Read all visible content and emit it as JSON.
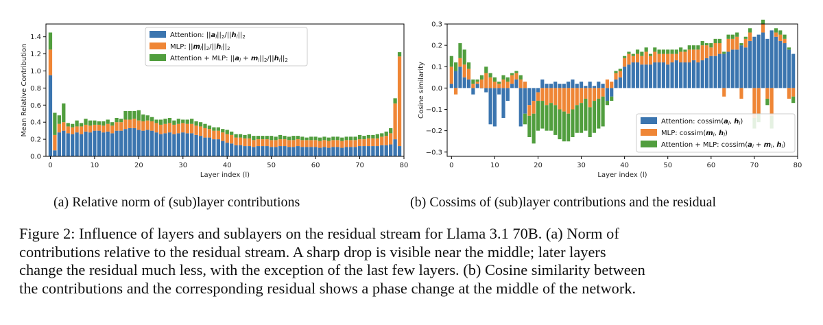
{
  "chart_data": [
    {
      "type": "bar",
      "stacked": true,
      "xlabel": "Layer index (l)",
      "ylabel": "Mean Relative Contribution",
      "xlim": [
        -1,
        80
      ],
      "ylim": [
        0,
        1.55
      ],
      "xticks": [
        "0",
        "10",
        "20",
        "30",
        "40",
        "50",
        "60",
        "70",
        "80"
      ],
      "yticks": [
        "0.0",
        "0.2",
        "0.4",
        "0.6",
        "0.8",
        "1.0",
        "1.2",
        "1.4"
      ],
      "legend_position": "top-center",
      "x": [
        0,
        1,
        2,
        3,
        4,
        5,
        6,
        7,
        8,
        9,
        10,
        11,
        12,
        13,
        14,
        15,
        16,
        17,
        18,
        19,
        20,
        21,
        22,
        23,
        24,
        25,
        26,
        27,
        28,
        29,
        30,
        31,
        32,
        33,
        34,
        35,
        36,
        37,
        38,
        39,
        40,
        41,
        42,
        43,
        44,
        45,
        46,
        47,
        48,
        49,
        50,
        51,
        52,
        53,
        54,
        55,
        56,
        57,
        58,
        59,
        60,
        61,
        62,
        63,
        64,
        65,
        66,
        67,
        68,
        69,
        70,
        71,
        72,
        73,
        74,
        75,
        76,
        77,
        78,
        79
      ],
      "series": [
        {
          "name": "Attention: ||a_l||₂/||h_l||₂",
          "color": "#3b75af",
          "values": [
            0.95,
            0.07,
            0.28,
            0.3,
            0.27,
            0.26,
            0.28,
            0.26,
            0.29,
            0.28,
            0.3,
            0.3,
            0.28,
            0.29,
            0.27,
            0.3,
            0.3,
            0.32,
            0.33,
            0.33,
            0.31,
            0.3,
            0.31,
            0.3,
            0.28,
            0.26,
            0.27,
            0.28,
            0.26,
            0.27,
            0.28,
            0.27,
            0.27,
            0.25,
            0.24,
            0.22,
            0.22,
            0.2,
            0.2,
            0.18,
            0.16,
            0.15,
            0.13,
            0.13,
            0.12,
            0.12,
            0.11,
            0.12,
            0.12,
            0.12,
            0.11,
            0.11,
            0.12,
            0.12,
            0.11,
            0.11,
            0.12,
            0.11,
            0.11,
            0.11,
            0.11,
            0.1,
            0.11,
            0.1,
            0.11,
            0.11,
            0.1,
            0.11,
            0.11,
            0.11,
            0.12,
            0.12,
            0.12,
            0.12,
            0.12,
            0.13,
            0.13,
            0.14,
            0.2,
            0.12
          ]
        },
        {
          "name": "MLP: ||m_l||₂/||h_l||₂",
          "color": "#ef8636",
          "values": [
            0.3,
            0.18,
            0.1,
            0.1,
            0.08,
            0.08,
            0.07,
            0.09,
            0.08,
            0.08,
            0.07,
            0.07,
            0.08,
            0.09,
            0.09,
            0.1,
            0.1,
            0.11,
            0.1,
            0.11,
            0.11,
            0.11,
            0.11,
            0.11,
            0.11,
            0.11,
            0.11,
            0.11,
            0.11,
            0.11,
            0.11,
            0.11,
            0.11,
            0.11,
            0.11,
            0.11,
            0.1,
            0.1,
            0.1,
            0.1,
            0.1,
            0.1,
            0.09,
            0.09,
            0.09,
            0.09,
            0.08,
            0.08,
            0.08,
            0.08,
            0.08,
            0.08,
            0.08,
            0.08,
            0.08,
            0.08,
            0.08,
            0.08,
            0.08,
            0.08,
            0.08,
            0.08,
            0.08,
            0.08,
            0.08,
            0.08,
            0.08,
            0.08,
            0.08,
            0.08,
            0.08,
            0.08,
            0.09,
            0.09,
            0.09,
            0.1,
            0.11,
            0.13,
            0.42,
            1.05
          ]
        },
        {
          "name": "Attention + MLP: ||a_l + m_l||₂/||h_l||₂",
          "color": "#519e3e",
          "values": [
            0.2,
            0.26,
            0.1,
            0.22,
            0.04,
            0.04,
            0.07,
            0.04,
            0.07,
            0.06,
            0.05,
            0.04,
            0.05,
            0.05,
            0.04,
            0.05,
            0.04,
            0.1,
            0.1,
            0.09,
            0.12,
            0.08,
            0.06,
            0.05,
            0.04,
            0.06,
            0.06,
            0.06,
            0.05,
            0.06,
            0.04,
            0.05,
            0.06,
            0.05,
            0.05,
            0.05,
            0.04,
            0.04,
            0.04,
            0.04,
            0.05,
            0.04,
            0.04,
            0.04,
            0.04,
            0.05,
            0.05,
            0.04,
            0.04,
            0.04,
            0.05,
            0.04,
            0.05,
            0.04,
            0.04,
            0.05,
            0.04,
            0.04,
            0.03,
            0.04,
            0.04,
            0.04,
            0.04,
            0.04,
            0.04,
            0.04,
            0.04,
            0.04,
            0.04,
            0.04,
            0.05,
            0.04,
            0.04,
            0.04,
            0.05,
            0.04,
            0.05,
            0.06,
            0.06,
            0.05
          ]
        }
      ]
    },
    {
      "type": "bar",
      "stacked": true,
      "xlabel": "Layer index (l)",
      "ylabel": "Cosine similarity",
      "xlim": [
        -1,
        80
      ],
      "ylim": [
        -0.32,
        0.3
      ],
      "xticks": [
        "0",
        "10",
        "20",
        "30",
        "40",
        "50",
        "60",
        "70",
        "80"
      ],
      "yticks": [
        "−0.3",
        "−0.2",
        "−0.1",
        "0.0",
        "0.1",
        "0.2",
        "0.3"
      ],
      "legend_position": "lower-right",
      "x": [
        0,
        1,
        2,
        3,
        4,
        5,
        6,
        7,
        8,
        9,
        10,
        11,
        12,
        13,
        14,
        15,
        16,
        17,
        18,
        19,
        20,
        21,
        22,
        23,
        24,
        25,
        26,
        27,
        28,
        29,
        30,
        31,
        32,
        33,
        34,
        35,
        36,
        37,
        38,
        39,
        40,
        41,
        42,
        43,
        44,
        45,
        46,
        47,
        48,
        49,
        50,
        51,
        52,
        53,
        54,
        55,
        56,
        57,
        58,
        59,
        60,
        61,
        62,
        63,
        64,
        65,
        66,
        67,
        68,
        69,
        70,
        71,
        72,
        73,
        74,
        75,
        76,
        77,
        78,
        79
      ],
      "series": [
        {
          "name": "Attention: cossim(a_l, h_l)",
          "color": "#3b75af",
          "values": [
            0.02,
            0.08,
            0.1,
            0.05,
            0.04,
            -0.03,
            0.02,
            0.0,
            -0.02,
            -0.17,
            -0.18,
            -0.03,
            -0.14,
            -0.06,
            0.02,
            0.04,
            -0.18,
            -0.12,
            -0.08,
            -0.06,
            -0.02,
            0.04,
            0.02,
            0.02,
            0.03,
            0.02,
            0.02,
            0.03,
            0.04,
            0.02,
            0.03,
            0.01,
            0.03,
            0.01,
            0.03,
            0.02,
            -0.06,
            -0.04,
            0.04,
            0.05,
            0.1,
            0.11,
            0.12,
            0.12,
            0.11,
            0.11,
            0.11,
            0.12,
            0.12,
            0.12,
            0.11,
            0.12,
            0.13,
            0.12,
            0.12,
            0.12,
            0.13,
            0.12,
            0.13,
            0.14,
            0.15,
            0.15,
            0.16,
            0.16,
            0.17,
            0.18,
            0.18,
            0.2,
            0.19,
            0.22,
            0.24,
            0.25,
            0.26,
            0.23,
            0.27,
            0.24,
            0.22,
            0.21,
            0.18,
            0.16
          ]
        },
        {
          "name": "MLP: cossim(m_l, h_l)",
          "color": "#ef8636",
          "values": [
            0.08,
            -0.03,
            0.04,
            0.06,
            0.05,
            0.02,
            0.01,
            0.04,
            0.07,
            0.05,
            0.03,
            0.02,
            0.04,
            0.03,
            0.04,
            0.03,
            0.04,
            0.03,
            -0.05,
            -0.06,
            -0.04,
            -0.06,
            -0.08,
            -0.07,
            -0.08,
            -0.1,
            -0.11,
            -0.12,
            -0.1,
            -0.08,
            -0.07,
            -0.05,
            -0.09,
            -0.06,
            -0.05,
            -0.04,
            0.04,
            0.03,
            0.03,
            0.03,
            0.04,
            0.05,
            0.03,
            0.04,
            0.04,
            0.06,
            0.04,
            0.05,
            0.04,
            0.04,
            0.05,
            0.04,
            0.03,
            0.05,
            0.05,
            0.06,
            0.05,
            0.06,
            0.07,
            0.06,
            0.04,
            0.06,
            0.05,
            -0.04,
            0.06,
            0.05,
            0.06,
            -0.05,
            0.04,
            0.04,
            -0.14,
            -0.12,
            0.04,
            -0.05,
            -0.13,
            0.02,
            0.03,
            0.02,
            -0.05,
            -0.04
          ]
        },
        {
          "name": "Attention + MLP: cossim(a_l + m_l, h_l)",
          "color": "#519e3e",
          "values": [
            0.05,
            0.04,
            0.07,
            0.07,
            0.03,
            0.02,
            0.01,
            0.02,
            0.03,
            0.02,
            0.02,
            0.01,
            0.02,
            0.02,
            0.01,
            0.01,
            0.02,
            -0.05,
            -0.1,
            -0.14,
            -0.14,
            -0.13,
            -0.12,
            -0.13,
            -0.14,
            -0.14,
            -0.14,
            -0.13,
            -0.13,
            -0.13,
            -0.14,
            -0.15,
            -0.14,
            -0.15,
            -0.14,
            -0.14,
            -0.02,
            -0.02,
            0.01,
            0.01,
            0.01,
            0.01,
            0.01,
            0.02,
            0.02,
            0.02,
            0.01,
            0.02,
            0.02,
            0.02,
            0.02,
            0.02,
            0.02,
            0.02,
            0.01,
            0.02,
            0.02,
            0.02,
            0.02,
            0.01,
            0.02,
            0.02,
            0.02,
            0.01,
            0.02,
            0.02,
            0.02,
            0.01,
            0.01,
            0.02,
            -0.05,
            -0.04,
            0.02,
            -0.03,
            -0.06,
            0.02,
            0.02,
            0.02,
            0.01,
            -0.03
          ]
        }
      ]
    }
  ],
  "subcaptions": {
    "a": "(a) Relative norm of (sub)layer contributions",
    "b": "(b) Cossims of (sub)layer contributions and the residual"
  },
  "caption": [
    "Figure 2: Influence of layers and sublayers on the residual stream for Llama 3.1 70B. (a) Norm of",
    "contributions relative to the residual stream.  A sharp drop is visible near the middle; later layers",
    "change the residual much less, with the exception of the last few layers. (b) Cosine similarity between",
    "the contributions and the corresponding residual shows a phase change at the middle of the network."
  ]
}
